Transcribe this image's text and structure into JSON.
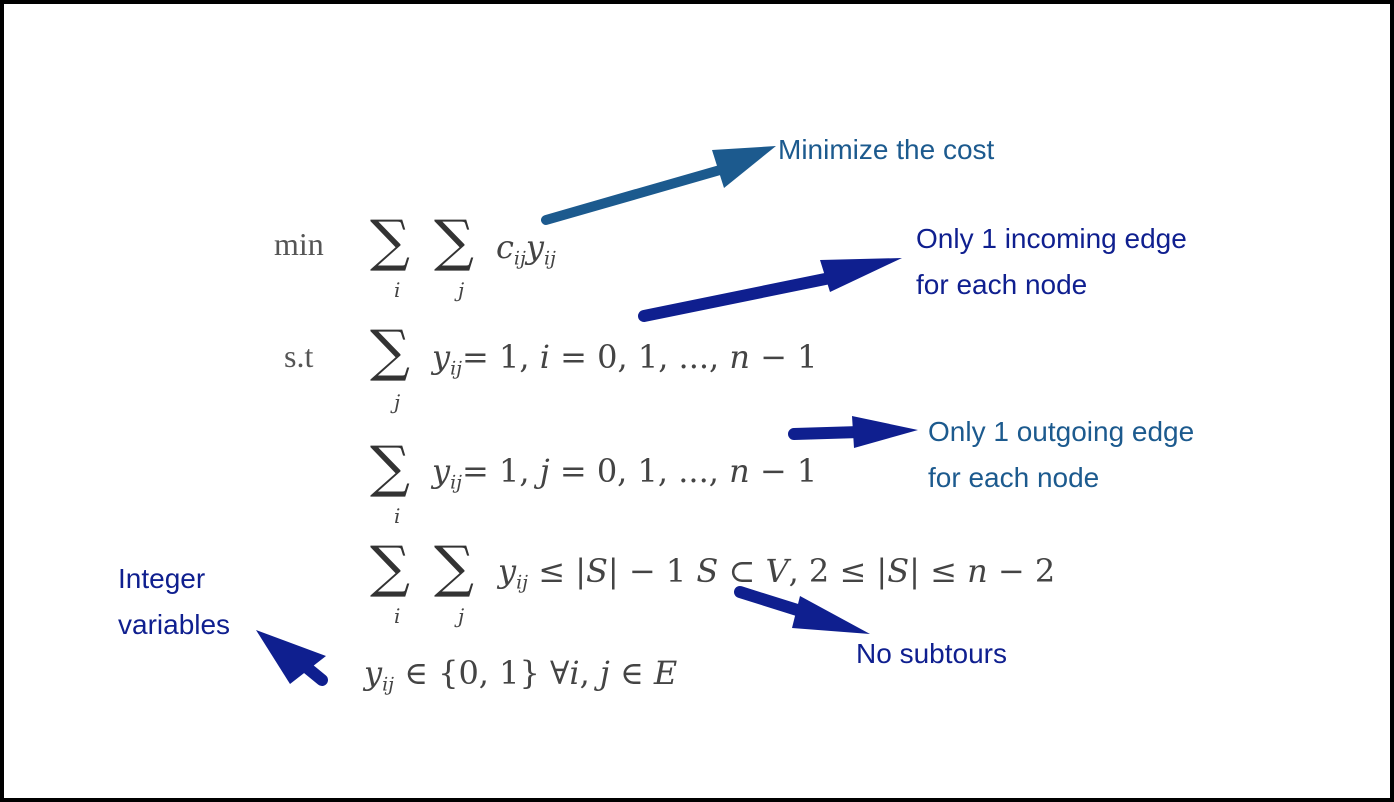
{
  "colors": {
    "accent_teal": "#1c5a8e",
    "accent_navy": "#0f1f8f",
    "math_text": "#444444",
    "border": "#000000"
  },
  "formulation": {
    "objective": {
      "keyword": "min",
      "sum_symbol": "∑",
      "index_i": "i",
      "index_j": "j",
      "term_c": "c",
      "term_c_sub": "ij",
      "term_y": "y",
      "term_y_sub": "ij"
    },
    "constraint1": {
      "keyword": "s.t",
      "index_j": "j",
      "y": "y",
      "y_sub": "ij",
      "rest": "= 1,   ",
      "cond_var": "i",
      "cond_rest": " = 0, 1, ..., ",
      "cond_n": "n",
      "cond_tail": " − 1"
    },
    "constraint2": {
      "index_i": "i",
      "y": "y",
      "y_sub": "ij",
      "rest": "= 1,   ",
      "cond_var": "j",
      "cond_rest": " = 0, 1, ..., ",
      "cond_n": "n",
      "cond_tail": " − 1"
    },
    "constraint3": {
      "index_i": "i",
      "index_j": "j",
      "y": "y",
      "y_sub": "ij",
      "rest": " ≤ |",
      "S1": "S",
      "rest2": "| − 1   ",
      "S2": "S",
      "rest3": " ⊂ ",
      "V": "V",
      "rest4": ", 2 ≤ |",
      "S3": "S",
      "rest5": "| ≤ ",
      "n": "n",
      "rest6": " − 2"
    },
    "constraint4": {
      "y": "y",
      "y_sub": "ij",
      "rest": " ∈ {0, 1} ∀",
      "i": "i",
      "comma": ", ",
      "j": "j",
      "in": " ∈ ",
      "E": "E"
    }
  },
  "annotations": {
    "minimize": {
      "lines": [
        "Minimize the cost"
      ]
    },
    "incoming": {
      "lines": [
        "Only 1 incoming edge",
        "for each node"
      ]
    },
    "outgoing": {
      "lines": [
        "Only 1 outgoing edge",
        "for each node"
      ]
    },
    "subtours": {
      "lines": [
        "No subtours"
      ]
    },
    "integer": {
      "lines": [
        "Integer",
        "variables"
      ]
    }
  }
}
